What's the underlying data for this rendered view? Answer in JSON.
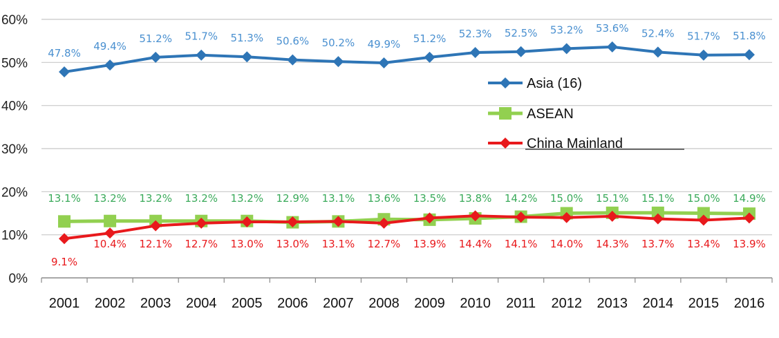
{
  "chart_data": {
    "type": "line",
    "title": "",
    "xlabel": "",
    "ylabel": "",
    "x": [
      "2001",
      "2002",
      "2003",
      "2004",
      "2005",
      "2006",
      "2007",
      "2008",
      "2009",
      "2010",
      "2011",
      "2012",
      "2013",
      "2014",
      "2015",
      "2016"
    ],
    "ylim": [
      0,
      60
    ],
    "yticks": [
      "0%",
      "10%",
      "20%",
      "30%",
      "40%",
      "50%",
      "60%"
    ],
    "grid": "horizontal",
    "legend_position": "center-right",
    "series": [
      {
        "name": "Asia (16)",
        "color": "#2e75b6",
        "label_color": "#4a90d0",
        "marker": "diamond",
        "values": [
          47.8,
          49.4,
          51.2,
          51.7,
          51.3,
          50.6,
          50.2,
          49.9,
          51.2,
          52.3,
          52.5,
          53.2,
          53.6,
          52.4,
          51.7,
          51.8
        ],
        "labels": [
          "47.8%",
          "49.4%",
          "51.2%",
          "51.7%",
          "51.3%",
          "50.6%",
          "50.2%",
          "49.9%",
          "51.2%",
          "52.3%",
          "52.5%",
          "53.2%",
          "53.6%",
          "52.4%",
          "51.7%",
          "51.8%"
        ]
      },
      {
        "name": "ASEAN",
        "color": "#92d050",
        "label_color": "#3aaa5a",
        "marker": "square",
        "values": [
          13.1,
          13.2,
          13.2,
          13.2,
          13.2,
          12.9,
          13.1,
          13.6,
          13.5,
          13.8,
          14.2,
          15.0,
          15.1,
          15.1,
          15.0,
          14.9
        ],
        "labels": [
          "13.1%",
          "13.2%",
          "13.2%",
          "13.2%",
          "13.2%",
          "12.9%",
          "13.1%",
          "13.6%",
          "13.5%",
          "13.8%",
          "14.2%",
          "15.0%",
          "15.1%",
          "15.1%",
          "15.0%",
          "14.9%"
        ]
      },
      {
        "name": "China Mainland",
        "color": "#e8191c",
        "label_color": "#e8191c",
        "marker": "diamond",
        "values": [
          9.1,
          10.4,
          12.1,
          12.7,
          13.0,
          13.0,
          13.1,
          12.7,
          13.9,
          14.4,
          14.1,
          14.0,
          14.3,
          13.7,
          13.4,
          13.9
        ],
        "labels": [
          "9.1%",
          "10.4%",
          "12.1%",
          "12.7%",
          "13.0%",
          "13.0%",
          "13.1%",
          "12.7%",
          "13.9%",
          "14.4%",
          "14.1%",
          "14.0%",
          "14.3%",
          "13.7%",
          "13.4%",
          "13.9%"
        ]
      }
    ]
  }
}
